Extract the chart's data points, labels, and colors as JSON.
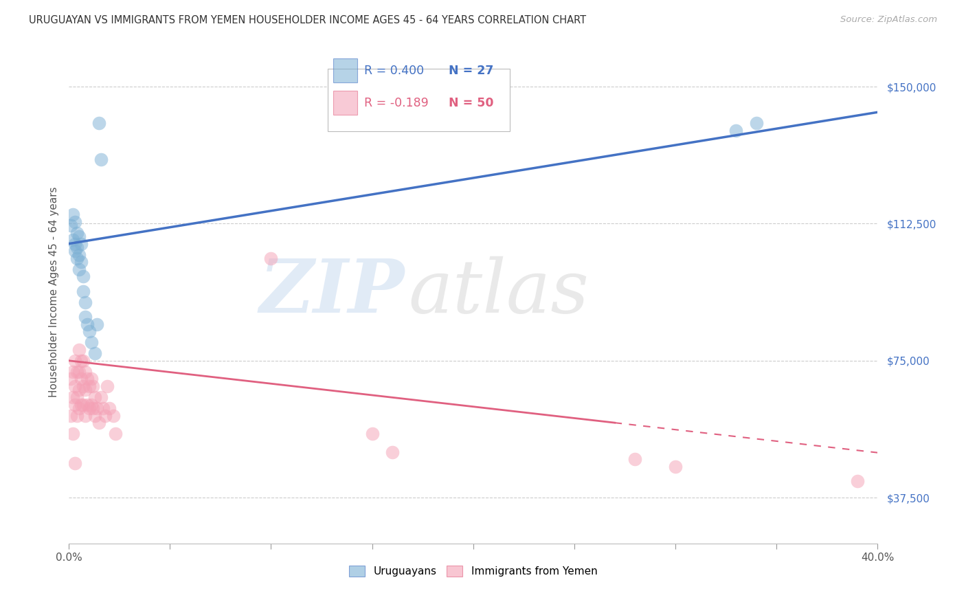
{
  "title": "URUGUAYAN VS IMMIGRANTS FROM YEMEN HOUSEHOLDER INCOME AGES 45 - 64 YEARS CORRELATION CHART",
  "source": "Source: ZipAtlas.com",
  "ylabel": "Householder Income Ages 45 - 64 years",
  "xlim": [
    0.0,
    0.4
  ],
  "ylim": [
    25000,
    162500
  ],
  "ytick_labels": [
    "$37,500",
    "$75,000",
    "$112,500",
    "$150,000"
  ],
  "ytick_values": [
    37500,
    75000,
    112500,
    150000
  ],
  "watermark_zip": "ZIP",
  "watermark_atlas": "atlas",
  "uruguayan_color": "#7bafd4",
  "yemeni_color": "#f4a0b5",
  "uruguayan_line_color": "#4472c4",
  "yemeni_line_color": "#e06080",
  "legend_r1": "R = 0.400",
  "legend_n1": "N = 27",
  "legend_r2": "R = -0.189",
  "legend_n2": "N = 50",
  "uruguayan_x": [
    0.001,
    0.002,
    0.002,
    0.003,
    0.003,
    0.003,
    0.004,
    0.004,
    0.004,
    0.005,
    0.005,
    0.005,
    0.006,
    0.006,
    0.007,
    0.007,
    0.008,
    0.008,
    0.009,
    0.01,
    0.011,
    0.013,
    0.014,
    0.015,
    0.016,
    0.33,
    0.34
  ],
  "uruguayan_y": [
    112000,
    115000,
    108000,
    113000,
    107000,
    105000,
    110000,
    106000,
    103000,
    109000,
    104000,
    100000,
    107000,
    102000,
    98000,
    94000,
    91000,
    87000,
    85000,
    83000,
    80000,
    77000,
    85000,
    140000,
    130000,
    138000,
    140000
  ],
  "yemeni_x": [
    0.001,
    0.001,
    0.002,
    0.002,
    0.002,
    0.003,
    0.003,
    0.003,
    0.003,
    0.004,
    0.004,
    0.004,
    0.005,
    0.005,
    0.005,
    0.005,
    0.006,
    0.006,
    0.006,
    0.007,
    0.007,
    0.007,
    0.008,
    0.008,
    0.008,
    0.009,
    0.009,
    0.01,
    0.01,
    0.011,
    0.011,
    0.012,
    0.012,
    0.013,
    0.013,
    0.014,
    0.015,
    0.016,
    0.017,
    0.018,
    0.019,
    0.02,
    0.022,
    0.023,
    0.1,
    0.15,
    0.16,
    0.28,
    0.3,
    0.39
  ],
  "yemeni_y": [
    70000,
    60000,
    72000,
    65000,
    55000,
    75000,
    68000,
    63000,
    47000,
    72000,
    65000,
    60000,
    78000,
    72000,
    67000,
    62000,
    75000,
    70000,
    63000,
    75000,
    68000,
    63000,
    72000,
    67000,
    60000,
    70000,
    63000,
    68000,
    62000,
    70000,
    63000,
    68000,
    62000,
    65000,
    60000,
    62000,
    58000,
    65000,
    62000,
    60000,
    68000,
    62000,
    60000,
    55000,
    103000,
    55000,
    50000,
    48000,
    46000,
    42000
  ],
  "background_color": "#ffffff",
  "grid_color": "#cccccc"
}
